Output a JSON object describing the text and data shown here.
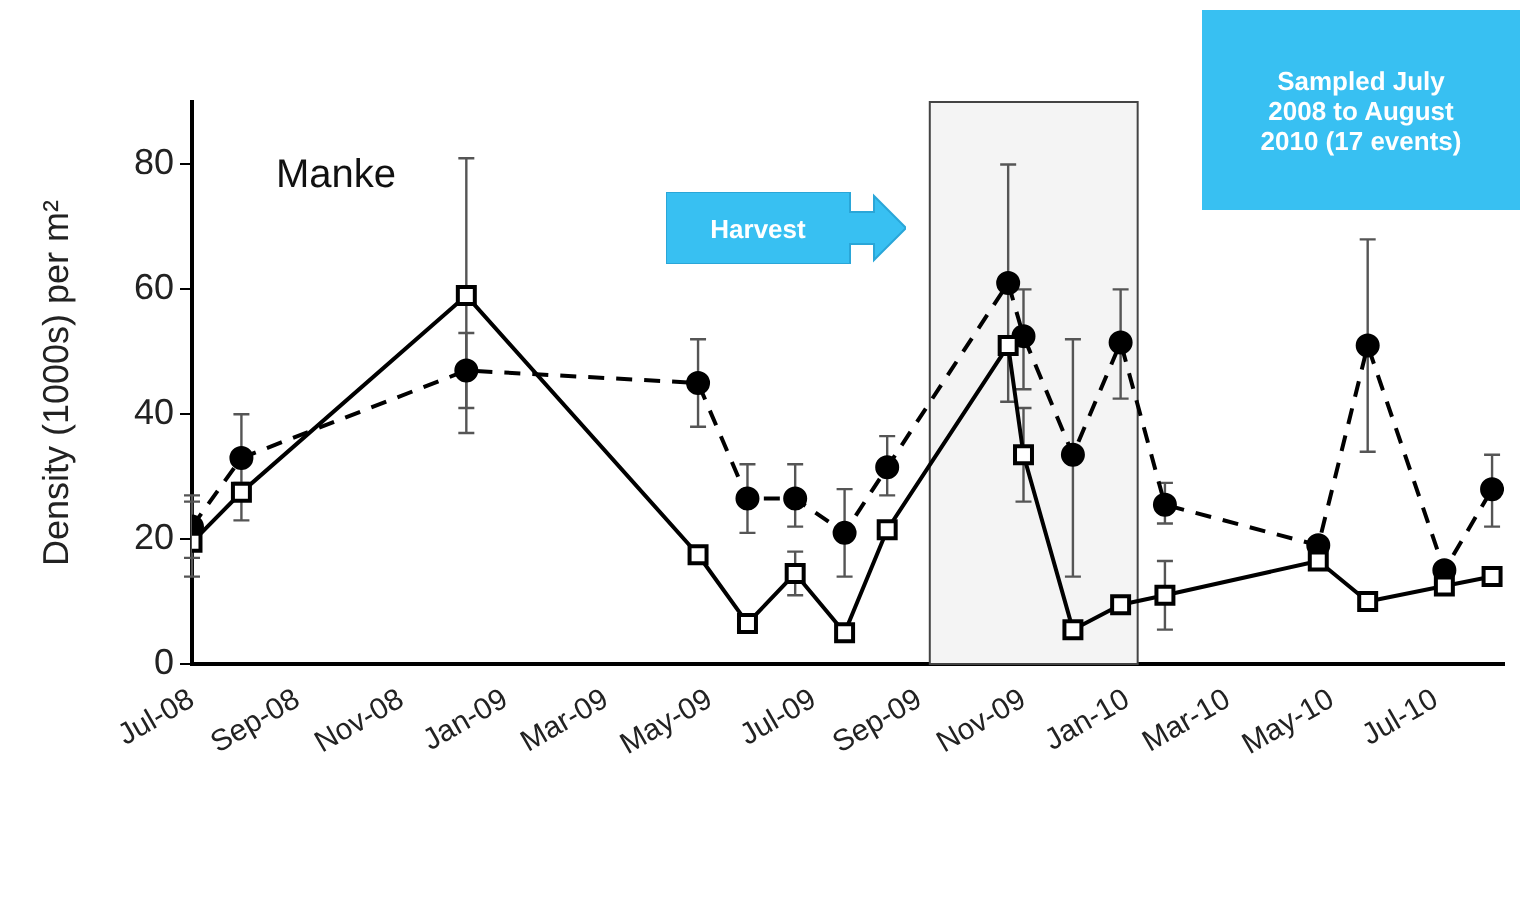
{
  "chart_data": {
    "type": "line",
    "ylabel": "Density (1000s) per m²",
    "annotations": [
      "Manke",
      "Sampled July 2008 to August 2010 (17 events)"
    ],
    "x": [
      "2008-07-01",
      "2008-07-30",
      "2008-12-09",
      "2009-04-24",
      "2009-05-23",
      "2009-06-20",
      "2009-07-19",
      "2009-08-13",
      "2009-10-23",
      "2009-11-01",
      "2009-11-30",
      "2009-12-28",
      "2010-01-23",
      "2010-04-23",
      "2010-05-22",
      "2010-07-06",
      "2010-08-03"
    ],
    "xlim": [
      "2008-07-01",
      "2010-08-10"
    ],
    "xticks": [
      {
        "value": "2008-07-01",
        "label": "Jul-08"
      },
      {
        "value": "2008-09-01",
        "label": "Sep-08"
      },
      {
        "value": "2008-11-01",
        "label": "Nov-08"
      },
      {
        "value": "2009-01-01",
        "label": "Jan-09"
      },
      {
        "value": "2009-03-01",
        "label": "Mar-09"
      },
      {
        "value": "2009-05-01",
        "label": "May-09"
      },
      {
        "value": "2009-07-01",
        "label": "Jul-09"
      },
      {
        "value": "2009-09-01",
        "label": "Sep-09"
      },
      {
        "value": "2009-11-01",
        "label": "Nov-09"
      },
      {
        "value": "2010-01-01",
        "label": "Jan-10"
      },
      {
        "value": "2010-03-01",
        "label": "Mar-10"
      },
      {
        "value": "2010-05-01",
        "label": "May-10"
      },
      {
        "value": "2010-07-01",
        "label": "Jul-10"
      }
    ],
    "ylim": [
      0,
      90
    ],
    "yticks": [
      0,
      20,
      40,
      60,
      80
    ],
    "grid": false,
    "legend": false,
    "bands": [
      {
        "axis": "x",
        "from": "2009-09-07",
        "to": "2010-01-07",
        "label": "Harvest"
      }
    ],
    "series": [
      {
        "color": "#000000",
        "marker": "square",
        "line_style": "solid",
        "values": [
          19.5,
          27.5,
          59,
          17.5,
          6.5,
          14.5,
          5,
          21.5,
          51,
          33.5,
          5.5,
          9.5,
          11,
          16.5,
          10,
          12.5,
          14
        ],
        "errors": [
          [
            14,
            26
          ],
          [
            23,
            29
          ],
          [
            37,
            81
          ],
          null,
          null,
          [
            11,
            18
          ],
          null,
          null,
          null,
          [
            26,
            41
          ],
          null,
          null,
          [
            5.5,
            16.5
          ],
          null,
          null,
          null,
          null
        ]
      },
      {
        "color": "#000000",
        "marker": "circle",
        "line_style": "dashed",
        "values": [
          22,
          33,
          47,
          45,
          26.5,
          26.5,
          21,
          31.5,
          61,
          52.5,
          33.5,
          51.5,
          25.5,
          19,
          51,
          15,
          28
        ],
        "errors": [
          [
            17,
            27
          ],
          [
            27,
            40
          ],
          [
            41,
            53
          ],
          [
            38,
            52
          ],
          [
            21,
            32
          ],
          [
            22,
            32
          ],
          [
            14,
            28
          ],
          [
            27,
            36.5
          ],
          [
            42,
            80
          ],
          [
            44,
            60
          ],
          [
            14,
            52
          ],
          [
            42.5,
            60
          ],
          [
            22.5,
            29
          ],
          null,
          [
            34,
            68
          ],
          null,
          [
            22,
            33.5
          ]
        ]
      }
    ]
  }
}
